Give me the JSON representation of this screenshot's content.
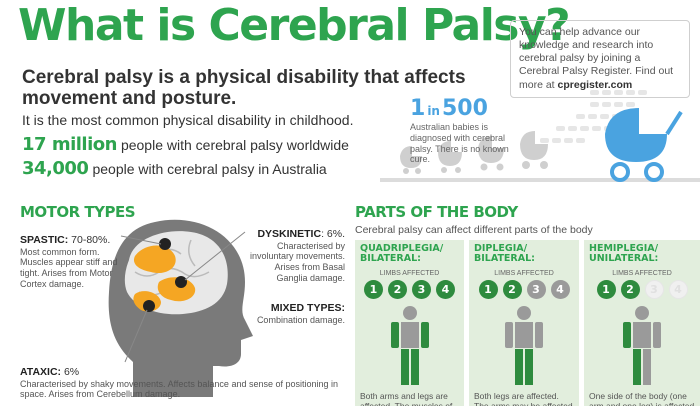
{
  "title": "What is Cerebral Palsy?",
  "info_box": {
    "text": "You can help advance our knowledge and research into cerebral palsy by joining a Cerebral Palsy Register. Find out more at ",
    "link": "cpregister.com"
  },
  "subtitle": "Cerebral palsy is a physical disability that affects movement and posture.",
  "line1": "It is the most common physical disability in childhood.",
  "stats": [
    {
      "big": "17 million",
      "text": "people with cerebral palsy worldwide"
    },
    {
      "big": "34,000",
      "text": "people with cerebral palsy in Australia"
    }
  ],
  "one_in": {
    "n1": "1",
    "word": "in",
    "n2": "500",
    "text": "Australian babies is diagnosed with cerebral palsy. There is no known cure."
  },
  "motor": {
    "title": "MOTOR TYPES",
    "spastic": {
      "name": "SPASTIC:",
      "pct": " 70-80%.",
      "desc": "Most common form. Muscles appear stiff and tight. Arises from Motor Cortex damage."
    },
    "dyskinetic": {
      "name": "DYSKINETIC",
      "pct": ": 6%.",
      "desc": "Characterised by involuntary movements. Arises from Basal Ganglia damage."
    },
    "mixed": {
      "name": "MIXED TYPES:",
      "desc": "Combination damage."
    },
    "ataxic": {
      "name": "ATAXIC:",
      "pct": " 6%",
      "desc": "Characterised by shaky movements. Affects balance and sense of positioning in space. Arises from Cerebellum damage."
    }
  },
  "body": {
    "title": "PARTS OF THE BODY",
    "desc": "Cerebral palsy can affect different parts of the body",
    "limbs_label": "LIMBS AFFECTED",
    "panels": [
      {
        "title1": "QUADRIPLEGIA/",
        "title2": "BILATERAL:",
        "circles": [
          "1",
          "2",
          "3",
          "4"
        ],
        "states": [
          "g",
          "g",
          "g",
          "g"
        ],
        "text": "Both arms and legs are affected. The muscles of the"
      },
      {
        "title1": "DIPLEGIA/",
        "title2": "BILATERAL:",
        "circles": [
          "1",
          "2",
          "3",
          "4"
        ],
        "states": [
          "g",
          "g",
          "x",
          "x"
        ],
        "text": "Both legs are affected. The arms may be affected to a"
      },
      {
        "title1": "HEMIPLEGIA/",
        "title2": "UNILATERAL:",
        "circles": [
          "1",
          "2",
          "3",
          "4"
        ],
        "states": [
          "g",
          "g",
          "w",
          "w"
        ],
        "text": "One side of the body (one arm and one leg) is affected"
      }
    ]
  },
  "colors": {
    "green": "#2ea44f",
    "dark_green": "#2e8b3e",
    "blue": "#4aa3e0",
    "gray": "#9a9a9a",
    "orange": "#f5a623",
    "panel_bg": "#e2eedd"
  }
}
